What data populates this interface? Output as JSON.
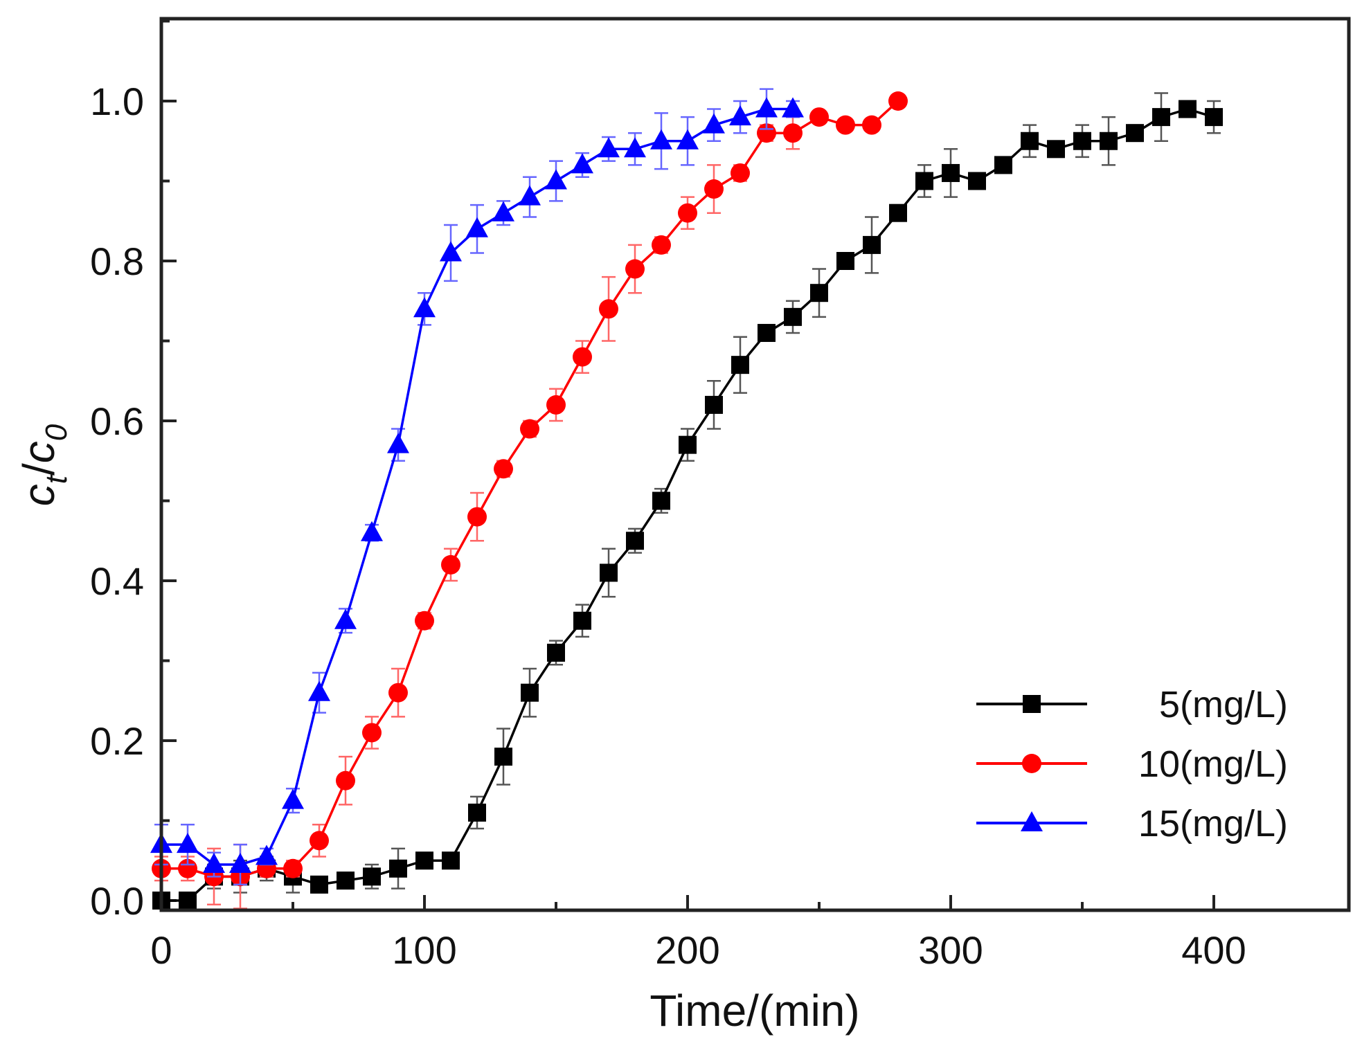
{
  "chart_data": {
    "type": "line",
    "title": "",
    "xlabel": "Time/(min)",
    "ylabel": "c_t/c_0",
    "ylabel_parts": {
      "c1": "c",
      "sub1": "t",
      "slash": "/",
      "c2": "c",
      "sub2": "0"
    },
    "xlim": [
      0,
      450
    ],
    "ylim": [
      0,
      1.1
    ],
    "xticks": [
      0,
      100,
      200,
      300,
      400
    ],
    "xtick_labels": [
      "0",
      "100",
      "200",
      "300",
      "400"
    ],
    "yticks": [
      0.0,
      0.2,
      0.4,
      0.6,
      0.8,
      1.0
    ],
    "ytick_labels": [
      "0.0",
      "0.2",
      "0.4",
      "0.6",
      "0.8",
      "1.0"
    ],
    "grid": false,
    "legend_position": "bottom-right",
    "series": [
      {
        "name": "5(mg/L)",
        "color": "#000000",
        "marker": "square",
        "x": [
          0,
          10,
          20,
          30,
          40,
          50,
          60,
          70,
          80,
          90,
          100,
          110,
          120,
          130,
          140,
          150,
          160,
          170,
          180,
          190,
          200,
          210,
          220,
          230,
          240,
          250,
          260,
          270,
          280,
          290,
          300,
          310,
          320,
          330,
          340,
          350,
          360,
          370,
          380,
          390,
          400
        ],
        "y": [
          0.0,
          0.0,
          0.03,
          0.03,
          0.04,
          0.03,
          0.02,
          0.025,
          0.03,
          0.04,
          0.05,
          0.05,
          0.11,
          0.18,
          0.26,
          0.31,
          0.35,
          0.41,
          0.45,
          0.5,
          0.57,
          0.62,
          0.67,
          0.71,
          0.73,
          0.76,
          0.8,
          0.82,
          0.86,
          0.9,
          0.91,
          0.9,
          0.92,
          0.95,
          0.94,
          0.95,
          0.95,
          0.96,
          0.98,
          0.99,
          0.98
        ],
        "err": [
          0.0,
          0.0,
          0.015,
          0.02,
          0.015,
          0.02,
          0.01,
          0.01,
          0.015,
          0.025,
          0.01,
          0.01,
          0.02,
          0.035,
          0.03,
          0.015,
          0.02,
          0.03,
          0.015,
          0.015,
          0.02,
          0.03,
          0.035,
          0.01,
          0.02,
          0.03,
          0.01,
          0.035,
          0.01,
          0.02,
          0.03,
          0.01,
          0.01,
          0.02,
          0.01,
          0.02,
          0.03,
          0.01,
          0.03,
          0.01,
          0.02
        ]
      },
      {
        "name": "10(mg/L)",
        "color": "#ff0000",
        "marker": "circle",
        "x": [
          0,
          10,
          20,
          30,
          40,
          50,
          60,
          70,
          80,
          90,
          100,
          110,
          120,
          130,
          140,
          150,
          160,
          170,
          180,
          190,
          200,
          210,
          220,
          230,
          240,
          250,
          260,
          270,
          280
        ],
        "y": [
          0.04,
          0.04,
          0.03,
          0.03,
          0.04,
          0.04,
          0.075,
          0.15,
          0.21,
          0.26,
          0.35,
          0.42,
          0.48,
          0.54,
          0.59,
          0.62,
          0.68,
          0.74,
          0.79,
          0.82,
          0.86,
          0.89,
          0.91,
          0.96,
          0.96,
          0.98,
          0.97,
          0.97,
          1.0
        ],
        "err": [
          0.015,
          0.015,
          0.035,
          0.04,
          0.01,
          0.01,
          0.02,
          0.03,
          0.02,
          0.03,
          0.01,
          0.02,
          0.03,
          0.01,
          0.01,
          0.02,
          0.02,
          0.04,
          0.03,
          0.01,
          0.02,
          0.03,
          0.01,
          0.01,
          0.02,
          0.0,
          0.0,
          0.0,
          0.0
        ]
      },
      {
        "name": "15(mg/L)",
        "color": "#0000ff",
        "marker": "triangle",
        "x": [
          0,
          10,
          20,
          30,
          40,
          50,
          60,
          70,
          80,
          90,
          100,
          110,
          120,
          130,
          140,
          150,
          160,
          170,
          180,
          190,
          200,
          210,
          220,
          230,
          240
        ],
        "y": [
          0.07,
          0.07,
          0.045,
          0.045,
          0.055,
          0.125,
          0.26,
          0.35,
          0.46,
          0.57,
          0.74,
          0.81,
          0.84,
          0.86,
          0.88,
          0.9,
          0.92,
          0.94,
          0.94,
          0.95,
          0.95,
          0.97,
          0.98,
          0.99,
          0.99
        ],
        "err": [
          0.025,
          0.025,
          0.015,
          0.025,
          0.01,
          0.015,
          0.025,
          0.015,
          0.01,
          0.02,
          0.02,
          0.035,
          0.03,
          0.015,
          0.025,
          0.025,
          0.015,
          0.015,
          0.02,
          0.035,
          0.03,
          0.02,
          0.02,
          0.025,
          0.01
        ]
      }
    ]
  }
}
